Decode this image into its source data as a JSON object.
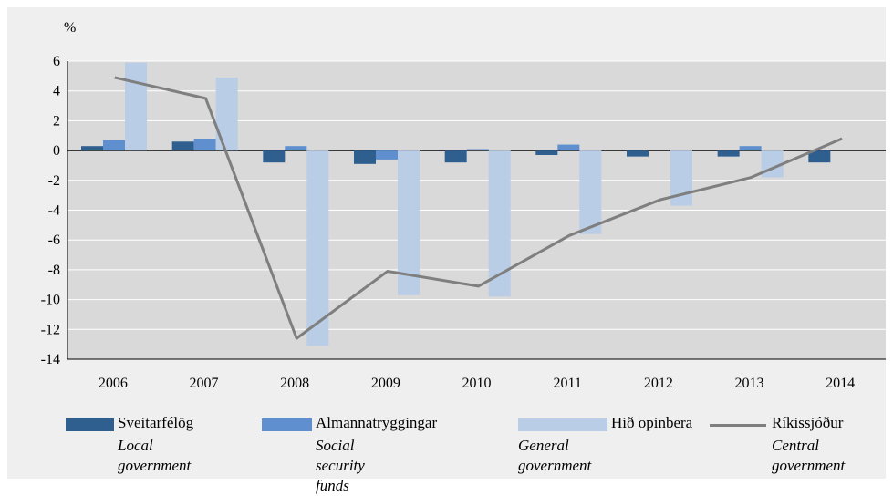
{
  "chart_data": {
    "type": "bar",
    "ylabel": "%",
    "ylim": [
      -14,
      6
    ],
    "yticks": [
      6,
      4,
      2,
      0,
      -2,
      -4,
      -6,
      -8,
      -10,
      -12,
      -14
    ],
    "grid": true,
    "categories": [
      "2006",
      "2007",
      "2008",
      "2009",
      "2010",
      "2011",
      "2012",
      "2013",
      "2014"
    ],
    "series": [
      {
        "name": "Sveitarfélög",
        "name_en": "Local government",
        "type": "bar",
        "color": "#2f5f8f",
        "values": [
          0.3,
          0.6,
          -0.8,
          -0.9,
          -0.8,
          -0.3,
          -0.4,
          -0.4,
          -0.8
        ]
      },
      {
        "name": "Almannatryggingar",
        "name_en": "Social security funds",
        "type": "bar",
        "color": "#5f8fcf",
        "values": [
          0.7,
          0.8,
          0.3,
          -0.6,
          0.1,
          0.4,
          0.0,
          0.3,
          0.0
        ]
      },
      {
        "name": "Hið opinbera",
        "name_en": "General government",
        "type": "bar",
        "color": "#b9cde6",
        "values": [
          5.9,
          4.9,
          -13.1,
          -9.7,
          -9.8,
          -5.6,
          -3.7,
          -1.8,
          0.0
        ]
      },
      {
        "name": "Ríkissjóður",
        "name_en": "Central government",
        "type": "line",
        "color": "#7f7f7f",
        "values": [
          4.9,
          3.5,
          -12.6,
          -8.1,
          -9.1,
          -5.7,
          -3.3,
          -1.8,
          0.8
        ]
      }
    ],
    "legend_position": "bottom"
  }
}
